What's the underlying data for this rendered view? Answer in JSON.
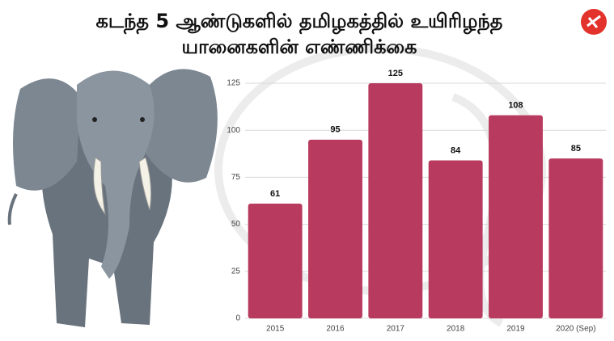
{
  "chart_data": {
    "type": "bar",
    "title": "கடந்த 5 ஆண்டுகளில் தமிழகத்தில் உயிரிழந்த யானைகளின் எண்ணிக்கை",
    "categories": [
      "2015",
      "2016",
      "2017",
      "2018",
      "2019",
      "2020 (Sep)"
    ],
    "values": [
      61,
      95,
      125,
      84,
      108,
      85
    ],
    "color": "#b83a5e",
    "ylim": [
      0,
      125
    ],
    "yticks": [
      0,
      25,
      50,
      75,
      100,
      125
    ],
    "grid": true
  }
}
